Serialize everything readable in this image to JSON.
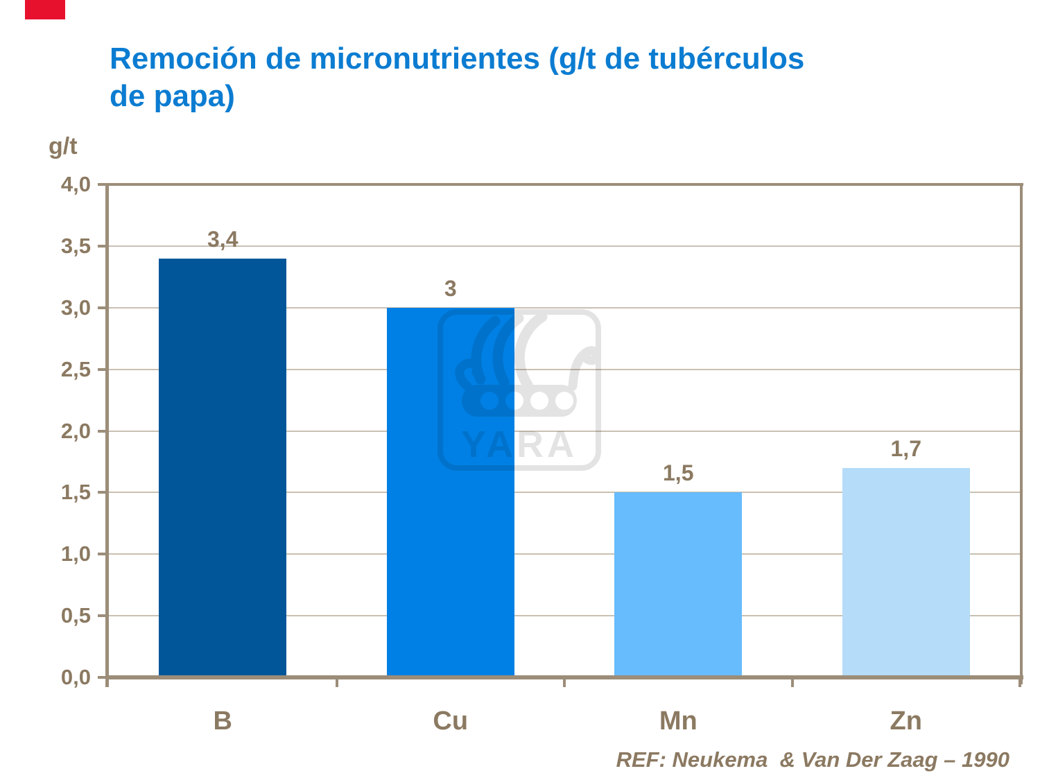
{
  "accent_red": "#E8112D",
  "title": {
    "text": "Remoción de micronutrientes (g/t de tubérculos\nde papa)",
    "color": "#0B7CD1"
  },
  "axis_unit_label": "g/t",
  "reference": "REF: Neukema  & Van Der Zaag – 1990",
  "watermark": {
    "name": "yara-logo",
    "text": "YARA"
  },
  "chart_data": {
    "type": "bar",
    "title": "Remoción de micronutrientes (g/t de tubérculos de papa)",
    "categories": [
      "B",
      "Cu",
      "Mn",
      "Zn"
    ],
    "values": [
      3.4,
      3,
      1.5,
      1.7
    ],
    "value_labels": [
      "3,4",
      "3",
      "1,5",
      "1,7"
    ],
    "bar_colors": [
      "#005699",
      "#0080E4",
      "#66BCFC",
      "#B5DCF8"
    ],
    "xlabel": "",
    "ylabel": "g/t",
    "ylim": [
      0,
      4
    ],
    "ytick_step": 0.5,
    "ytick_labels": [
      "0,0",
      "0,5",
      "1,0",
      "1,5",
      "2,0",
      "2,5",
      "3,0",
      "3,5",
      "4,0"
    ],
    "grid": true,
    "legend": false,
    "text_color": "#8B7961",
    "axis_color": "#9C8D79",
    "gridline_color": "#C9C0B2"
  }
}
